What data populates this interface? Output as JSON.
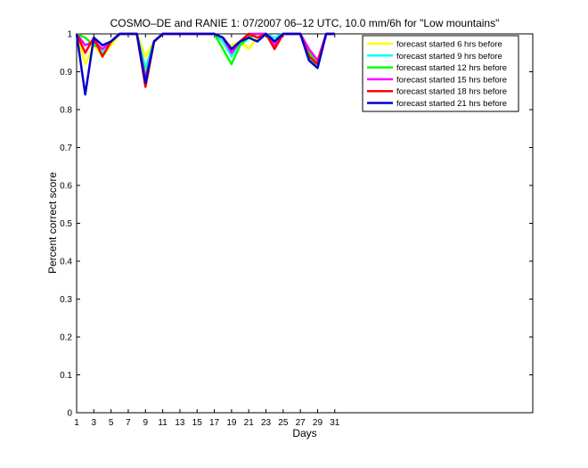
{
  "chart_data": {
    "type": "line",
    "title": "COSMO–DE and RANIE 1: 07/2007 06–12 UTC, 10.0 mm/6h for \"Low mountains\"",
    "xlabel": "Days",
    "ylabel": "Percent correct score",
    "xlim": [
      1,
      54
    ],
    "ylim": [
      0,
      1
    ],
    "xticks": [
      "1",
      "3",
      "5",
      "7",
      "9",
      "11",
      "13",
      "15",
      "17",
      "19",
      "21",
      "23",
      "25",
      "27",
      "29",
      "31"
    ],
    "yticks": [
      "0",
      "0.1",
      "0.2",
      "0.3",
      "0.4",
      "0.5",
      "0.6",
      "0.7",
      "0.8",
      "0.9",
      "1"
    ],
    "grid": false,
    "legend_position": "top-right",
    "x": [
      1,
      2,
      3,
      4,
      5,
      6,
      7,
      8,
      9,
      10,
      11,
      12,
      13,
      14,
      15,
      16,
      17,
      18,
      19,
      20,
      21,
      22,
      23,
      24,
      25,
      26,
      27,
      28,
      29,
      30,
      31
    ],
    "series": [
      {
        "name": "forecast started 6 hrs before",
        "color": "#ffff00",
        "values": [
          1,
          0.92,
          0.97,
          0.94,
          0.97,
          1,
          1,
          1,
          0.94,
          0.98,
          1,
          1,
          1,
          1,
          1,
          1,
          1,
          0.98,
          0.97,
          0.98,
          0.96,
          0.99,
          1,
          0.98,
          1,
          1,
          1,
          0.95,
          0.93,
          1,
          1
        ]
      },
      {
        "name": "forecast started 9 hrs before",
        "color": "#00ffff",
        "values": [
          1,
          0.97,
          0.98,
          0.95,
          0.98,
          1,
          1,
          1,
          0.91,
          0.98,
          1,
          1,
          1,
          1,
          1,
          1,
          1,
          0.98,
          0.94,
          0.98,
          0.99,
          1,
          1,
          0.99,
          1,
          1,
          1,
          0.93,
          0.92,
          1,
          1
        ]
      },
      {
        "name": "forecast started 12 hrs before",
        "color": "#00ff00",
        "values": [
          1,
          0.99,
          0.97,
          0.96,
          0.98,
          1,
          1,
          1,
          0.89,
          0.98,
          1,
          1,
          1,
          1,
          1,
          1,
          1,
          0.96,
          0.92,
          0.97,
          0.99,
          1,
          1,
          0.98,
          1,
          1,
          1,
          0.95,
          0.92,
          1,
          1
        ]
      },
      {
        "name": "forecast started 15 hrs before",
        "color": "#ff00ff",
        "values": [
          1,
          0.97,
          0.98,
          0.96,
          0.98,
          1,
          1,
          1,
          0.88,
          0.98,
          1,
          1,
          1,
          1,
          1,
          1,
          1,
          0.99,
          0.95,
          0.98,
          1,
          1,
          1,
          0.97,
          1,
          1,
          1,
          0.96,
          0.93,
          1,
          1
        ]
      },
      {
        "name": "forecast started 18 hrs before",
        "color": "#ff0000",
        "values": [
          1,
          0.95,
          0.99,
          0.94,
          0.98,
          1,
          1,
          1,
          0.86,
          0.98,
          1,
          1,
          1,
          1,
          1,
          1,
          1,
          0.99,
          0.96,
          0.98,
          1,
          0.99,
          1,
          0.96,
          1,
          1,
          1,
          0.94,
          0.92,
          1,
          1
        ]
      },
      {
        "name": "forecast started 21 hrs before",
        "color": "#0000cc",
        "values": [
          1,
          0.84,
          0.99,
          0.97,
          0.98,
          1,
          1,
          1,
          0.87,
          0.98,
          1,
          1,
          1,
          1,
          1,
          1,
          1,
          0.99,
          0.96,
          0.98,
          0.99,
          0.98,
          1,
          0.98,
          1,
          1,
          1,
          0.93,
          0.91,
          1,
          1
        ]
      }
    ]
  }
}
